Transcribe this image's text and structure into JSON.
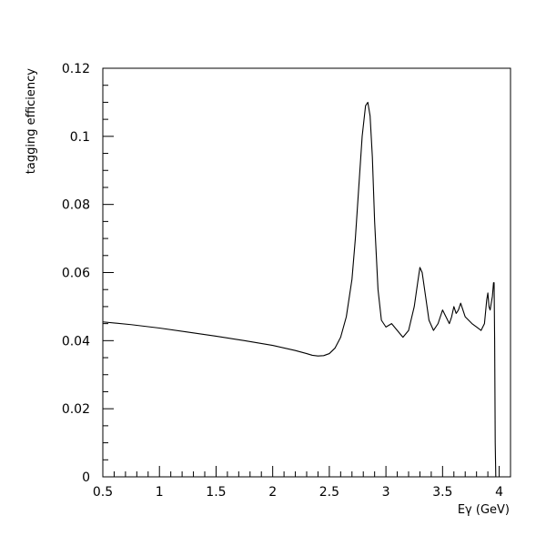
{
  "chart_data": {
    "type": "line",
    "title": "",
    "xlabel": "Eγ (GeV)",
    "ylabel": "tagging efficiency",
    "xlim": [
      0.5,
      4.1
    ],
    "ylim": [
      0,
      0.12
    ],
    "grid": false,
    "legend": "none",
    "line_color": "#000000",
    "x_ticks": [
      0.5,
      1,
      1.5,
      2,
      2.5,
      3,
      3.5,
      4
    ],
    "x_tick_labels": [
      "0.5",
      "1",
      "1.5",
      "2",
      "2.5",
      "3",
      "3.5",
      "4"
    ],
    "y_ticks": [
      0,
      0.02,
      0.04,
      0.06,
      0.08,
      0.1,
      0.12
    ],
    "y_tick_labels": [
      "0",
      "0.02",
      "0.04",
      "0.06",
      "0.08",
      "0.1",
      "0.12"
    ],
    "series": [
      {
        "x": [
          0.5,
          0.75,
          1.0,
          1.25,
          1.5,
          1.75,
          2.0,
          2.2,
          2.3,
          2.35,
          2.4,
          2.45,
          2.5,
          2.55,
          2.6,
          2.65,
          2.7,
          2.73,
          2.76,
          2.79,
          2.82,
          2.84,
          2.86,
          2.88,
          2.9,
          2.93,
          2.96,
          3.0,
          3.05,
          3.1,
          3.15,
          3.2,
          3.25,
          3.28,
          3.3,
          3.32,
          3.35,
          3.38,
          3.42,
          3.46,
          3.5,
          3.53,
          3.56,
          3.58,
          3.6,
          3.62,
          3.64,
          3.66,
          3.68,
          3.7,
          3.73,
          3.76,
          3.8,
          3.84,
          3.87,
          3.89,
          3.9,
          3.91,
          3.92,
          3.93,
          3.94,
          3.95,
          3.955,
          3.96,
          3.965,
          3.97
        ],
        "y": [
          0.0455,
          0.0447,
          0.0437,
          0.0425,
          0.0413,
          0.04,
          0.0386,
          0.0371,
          0.0362,
          0.0357,
          0.0355,
          0.0356,
          0.0362,
          0.0378,
          0.041,
          0.047,
          0.058,
          0.07,
          0.085,
          0.1,
          0.109,
          0.11,
          0.106,
          0.094,
          0.075,
          0.055,
          0.046,
          0.044,
          0.045,
          0.043,
          0.041,
          0.043,
          0.05,
          0.057,
          0.0615,
          0.06,
          0.053,
          0.046,
          0.043,
          0.045,
          0.049,
          0.047,
          0.045,
          0.047,
          0.05,
          0.048,
          0.049,
          0.051,
          0.049,
          0.047,
          0.046,
          0.045,
          0.044,
          0.043,
          0.045,
          0.052,
          0.054,
          0.05,
          0.049,
          0.051,
          0.053,
          0.057,
          0.057,
          0.04,
          0.01,
          0.0
        ]
      }
    ]
  }
}
